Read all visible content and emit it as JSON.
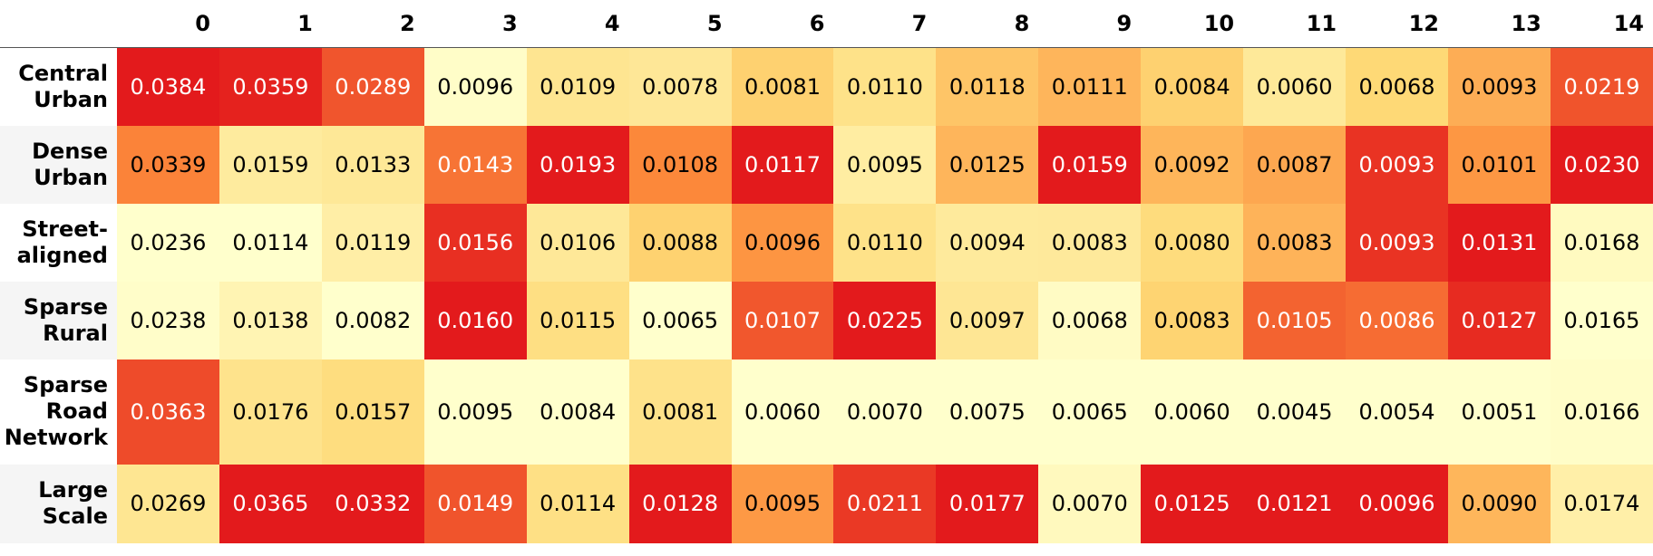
{
  "chart_data": {
    "type": "heatmap",
    "columns": [
      "0",
      "1",
      "2",
      "3",
      "4",
      "5",
      "6",
      "7",
      "8",
      "9",
      "10",
      "11",
      "12",
      "13",
      "14"
    ],
    "rows": [
      {
        "label": [
          "Central",
          "Urban"
        ],
        "values": [
          0.0384,
          0.0359,
          0.0289,
          0.0096,
          0.0109,
          0.0078,
          0.0081,
          0.011,
          0.0118,
          0.0111,
          0.0084,
          0.006,
          0.0068,
          0.0093,
          0.0219
        ]
      },
      {
        "label": [
          "Dense",
          "Urban"
        ],
        "values": [
          0.0339,
          0.0159,
          0.0133,
          0.0143,
          0.0193,
          0.0108,
          0.0117,
          0.0095,
          0.0125,
          0.0159,
          0.0092,
          0.0087,
          0.0093,
          0.0101,
          0.023
        ]
      },
      {
        "label": [
          "Street-",
          "aligned"
        ],
        "values": [
          0.0236,
          0.0114,
          0.0119,
          0.0156,
          0.0106,
          0.0088,
          0.0096,
          0.011,
          0.0094,
          0.0083,
          0.008,
          0.0083,
          0.0093,
          0.0131,
          0.0168
        ]
      },
      {
        "label": [
          "Sparse",
          "Rural"
        ],
        "values": [
          0.0238,
          0.0138,
          0.0082,
          0.016,
          0.0115,
          0.0065,
          0.0107,
          0.0225,
          0.0097,
          0.0068,
          0.0083,
          0.0105,
          0.0086,
          0.0127,
          0.0165
        ]
      },
      {
        "label": [
          "Sparse",
          "Road",
          "Network"
        ],
        "values": [
          0.0363,
          0.0176,
          0.0157,
          0.0095,
          0.0084,
          0.0081,
          0.006,
          0.007,
          0.0075,
          0.0065,
          0.006,
          0.0045,
          0.0054,
          0.0051,
          0.0166
        ]
      },
      {
        "label": [
          "Large",
          "Scale"
        ],
        "values": [
          0.0269,
          0.0365,
          0.0332,
          0.0149,
          0.0114,
          0.0128,
          0.0095,
          0.0211,
          0.0177,
          0.007,
          0.0125,
          0.0121,
          0.0096,
          0.009,
          0.0174
        ]
      }
    ],
    "value_format": "4 decimals",
    "colormap": "YlOrRd, normalized per column",
    "color_stops": [
      "#ffffcc",
      "#fed976",
      "#fd8d3c",
      "#e31a1c"
    ],
    "text_light": "#ffffff",
    "text_dark": "#000000"
  }
}
